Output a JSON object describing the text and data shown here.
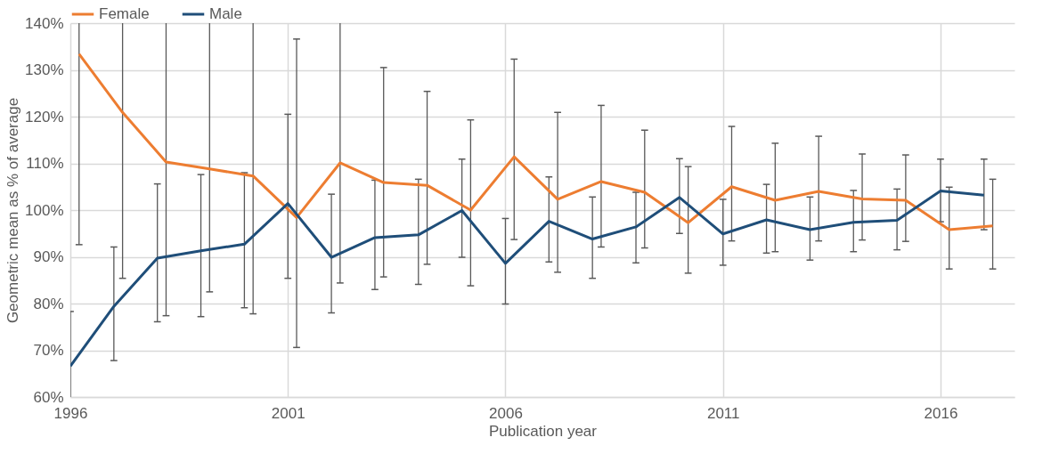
{
  "chart_data": {
    "type": "line",
    "xlabel": "Publication year",
    "ylabel": "Geometric mean as % of average",
    "xlim": [
      1996,
      2017.7
    ],
    "xticks": [
      1996,
      2001,
      2006,
      2011,
      2016
    ],
    "ylim": [
      60,
      140
    ],
    "yticks": [
      {
        "value": 60,
        "label": "60%"
      },
      {
        "value": 70,
        "label": "70%"
      },
      {
        "value": 80,
        "label": "80%"
      },
      {
        "value": 90,
        "label": "90%"
      },
      {
        "value": 100,
        "label": "100%"
      },
      {
        "value": 110,
        "label": "110%"
      },
      {
        "value": 120,
        "label": "120%"
      },
      {
        "value": 130,
        "label": "130%"
      },
      {
        "value": 140,
        "label": "140%"
      }
    ],
    "grid": true,
    "legend": "top",
    "series": [
      {
        "name": "Female",
        "color": "#ed7d31",
        "x": [
          1996.2,
          1997.2,
          1998.2,
          1999.2,
          2000.2,
          2001.2,
          2002.2,
          2003.2,
          2004.2,
          2005.2,
          2006.2,
          2007.2,
          2008.2,
          2009.2,
          2010.2,
          2011.2,
          2012.2,
          2013.2,
          2014.2,
          2015.2,
          2016.2,
          2017.2
        ],
        "values": [
          133.4,
          120.9,
          110.3,
          108.8,
          107.3,
          98.4,
          110.1,
          105.9,
          105.3,
          100,
          111.4,
          102.3,
          106.1,
          103.8,
          97.3,
          105,
          102.1,
          104,
          102.4,
          102.1,
          95.8,
          96.6
        ],
        "errors": [
          [
            92.6,
            140
          ],
          [
            85.4,
            140
          ],
          [
            77.4,
            140
          ],
          [
            82.5,
            140
          ],
          [
            77.8,
            140
          ],
          [
            70.6,
            136.6
          ],
          [
            84.4,
            140
          ],
          [
            85.7,
            130.5
          ],
          [
            88.4,
            125.4
          ],
          [
            83.8,
            119.3
          ],
          [
            93.7,
            132.3
          ],
          [
            86.7,
            120.9
          ],
          [
            92.1,
            122.4
          ],
          [
            91.9,
            117.1
          ],
          [
            86.5,
            109.3
          ],
          [
            93.4,
            117.9
          ],
          [
            91.1,
            114.3
          ],
          [
            93.4,
            115.8
          ],
          [
            93.6,
            112
          ],
          [
            93.3,
            111.8
          ],
          [
            87.4,
            104.9
          ],
          [
            87.4,
            106.6
          ]
        ]
      },
      {
        "name": "Male",
        "color": "#1f4e79",
        "x": [
          1996,
          1997,
          1998,
          1999,
          2000,
          2001,
          2002,
          2003,
          2004,
          2005,
          2006,
          2007,
          2008,
          2009,
          2010,
          2011,
          2012,
          2013,
          2014,
          2015,
          2016,
          2017
        ],
        "values": [
          66.6,
          79.4,
          89.7,
          91.3,
          92.7,
          101.4,
          89.9,
          94.1,
          94.7,
          99.9,
          88.6,
          97.6,
          93.8,
          96.4,
          102.7,
          94.9,
          97.9,
          95.8,
          97.4,
          97.8,
          104.1,
          103.2
        ],
        "errors": [
          [
            60,
            78.3
          ],
          [
            67.8,
            92.1
          ],
          [
            76.1,
            105.6
          ],
          [
            77.2,
            107.6
          ],
          [
            79.1,
            108
          ],
          [
            85.4,
            120.5
          ],
          [
            78,
            103.4
          ],
          [
            83,
            106.4
          ],
          [
            84.1,
            106.6
          ],
          [
            89.9,
            110.9
          ],
          [
            79.9,
            98.2
          ],
          [
            88.9,
            107.1
          ],
          [
            85.4,
            102.8
          ],
          [
            88.7,
            103.8
          ],
          [
            95,
            111
          ],
          [
            88.2,
            102.3
          ],
          [
            90.8,
            105.5
          ],
          [
            89.3,
            102.8
          ],
          [
            91.1,
            104.2
          ],
          [
            91.5,
            104.5
          ],
          [
            97.5,
            110.9
          ],
          [
            95.8,
            110.9
          ]
        ]
      }
    ]
  }
}
